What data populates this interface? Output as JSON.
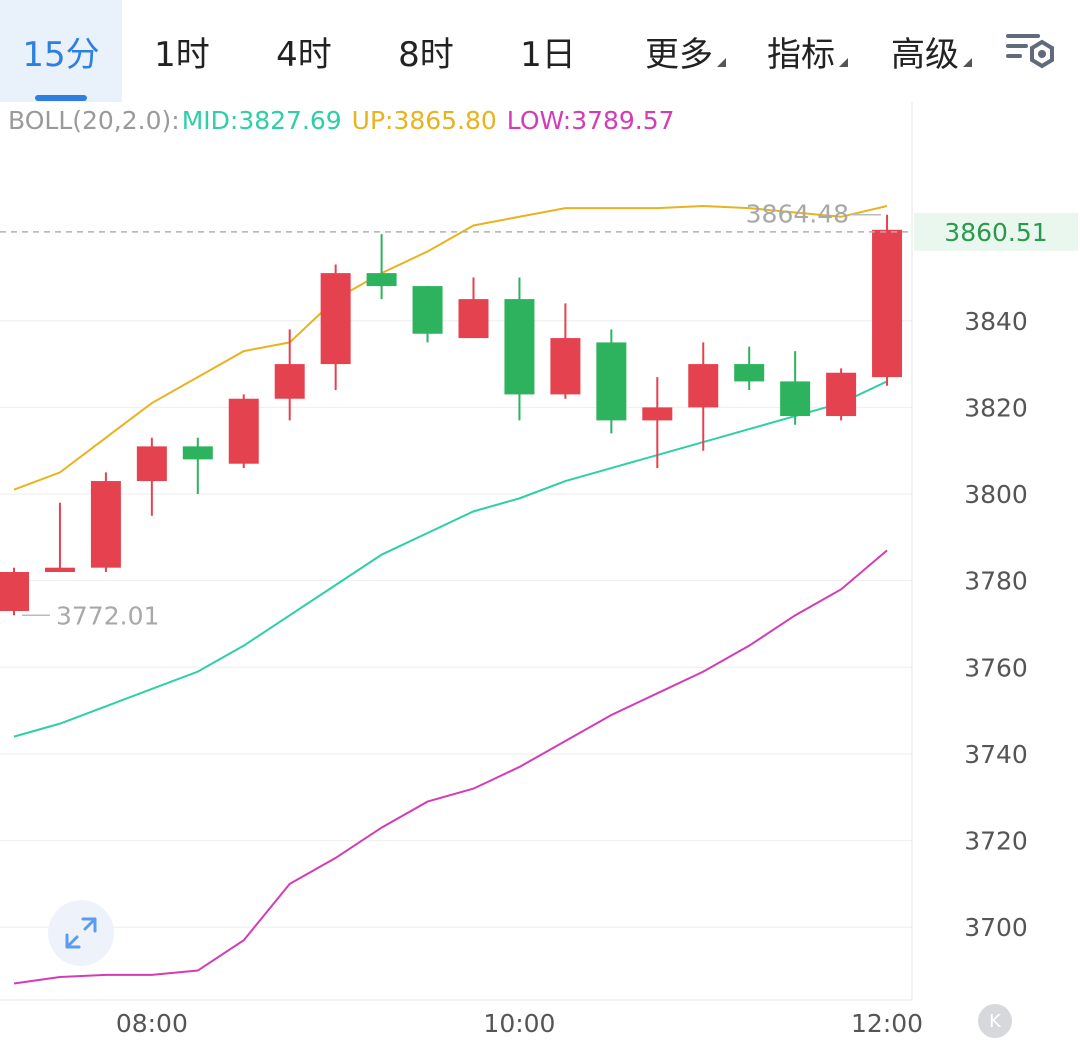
{
  "tabs": [
    {
      "label": "15分",
      "active": true
    },
    {
      "label": "1时"
    },
    {
      "label": "4时"
    },
    {
      "label": "8时"
    },
    {
      "label": "1日"
    },
    {
      "label": "更多",
      "dropdown": true
    },
    {
      "label": "指标",
      "dropdown": true
    },
    {
      "label": "高级",
      "dropdown": true
    }
  ],
  "settings_icon": "chart-settings-icon",
  "indicator": {
    "name": "BOLL(20,2.0):",
    "mid": "MID:3827.69",
    "up": "UP:3865.80",
    "low": "LOW:3789.57"
  },
  "colors": {
    "up_candle": "#e5424f",
    "down_candle": "#2db35d",
    "mid_line": "#2ecfa8",
    "upper_band": "#e8b31e",
    "lower_band": "#d43cb6",
    "legend_name": "#9a9a9a",
    "last_price_tag": "#eaf7ee",
    "last_price_text": "#2a9a4e"
  },
  "chart_data": {
    "type": "candlestick",
    "yticks": [
      3700,
      3720,
      3740,
      3760,
      3780,
      3800,
      3820,
      3840
    ],
    "ylim": [
      3683.2,
      3890.5
    ],
    "xtick_labels": [
      "08:00",
      "10:00",
      "12:00"
    ],
    "xtick_index": [
      3,
      11,
      19
    ],
    "last_price": "3860.51",
    "high_label": "3864.48",
    "low_label": "3772.01",
    "candles": [
      {
        "o": 3773,
        "c": 3782,
        "h": 3783,
        "l": 3772.01
      },
      {
        "o": 3782,
        "c": 3783,
        "h": 3798,
        "l": 3782
      },
      {
        "o": 3783,
        "c": 3803,
        "h": 3805,
        "l": 3782
      },
      {
        "o": 3803,
        "c": 3811,
        "h": 3813,
        "l": 3795
      },
      {
        "o": 3811,
        "c": 3808,
        "h": 3813,
        "l": 3800
      },
      {
        "o": 3807,
        "c": 3822,
        "h": 3823,
        "l": 3806
      },
      {
        "o": 3822,
        "c": 3830,
        "h": 3838,
        "l": 3817
      },
      {
        "o": 3830,
        "c": 3851,
        "h": 3853,
        "l": 3824
      },
      {
        "o": 3851,
        "c": 3848,
        "h": 3860,
        "l": 3845
      },
      {
        "o": 3848,
        "c": 3837,
        "h": 3848,
        "l": 3835
      },
      {
        "o": 3836,
        "c": 3845,
        "h": 3850,
        "l": 3836
      },
      {
        "o": 3845,
        "c": 3823,
        "h": 3850,
        "l": 3817
      },
      {
        "o": 3823,
        "c": 3836,
        "h": 3844,
        "l": 3822
      },
      {
        "o": 3835,
        "c": 3817,
        "h": 3838,
        "l": 3814
      },
      {
        "o": 3817,
        "c": 3820,
        "h": 3827,
        "l": 3806
      },
      {
        "o": 3820,
        "c": 3830,
        "h": 3835,
        "l": 3810
      },
      {
        "o": 3830,
        "c": 3826,
        "h": 3834,
        "l": 3824
      },
      {
        "o": 3826,
        "c": 3818,
        "h": 3833,
        "l": 3816
      },
      {
        "o": 3818,
        "c": 3828,
        "h": 3829,
        "l": 3817
      },
      {
        "o": 3827,
        "c": 3861,
        "h": 3864.48,
        "l": 3825
      }
    ],
    "boll": {
      "upper": [
        3801,
        3805,
        3813,
        3821,
        3827,
        3833,
        3835,
        3845,
        3851,
        3856,
        3862,
        3864,
        3866,
        3866,
        3866,
        3866.5,
        3866,
        3865,
        3864,
        3866.5
      ],
      "mid": [
        3744,
        3747,
        3751,
        3755,
        3759,
        3765,
        3772,
        3779,
        3786,
        3791,
        3796,
        3799,
        3803,
        3806,
        3809,
        3812,
        3815,
        3818,
        3821,
        3826
      ],
      "lower": [
        3687,
        3688.5,
        3689,
        3689,
        3690,
        3697,
        3710,
        3716,
        3723,
        3729,
        3732,
        3737,
        3743,
        3749,
        3754,
        3759,
        3765,
        3772,
        3778,
        3787
      ]
    }
  }
}
